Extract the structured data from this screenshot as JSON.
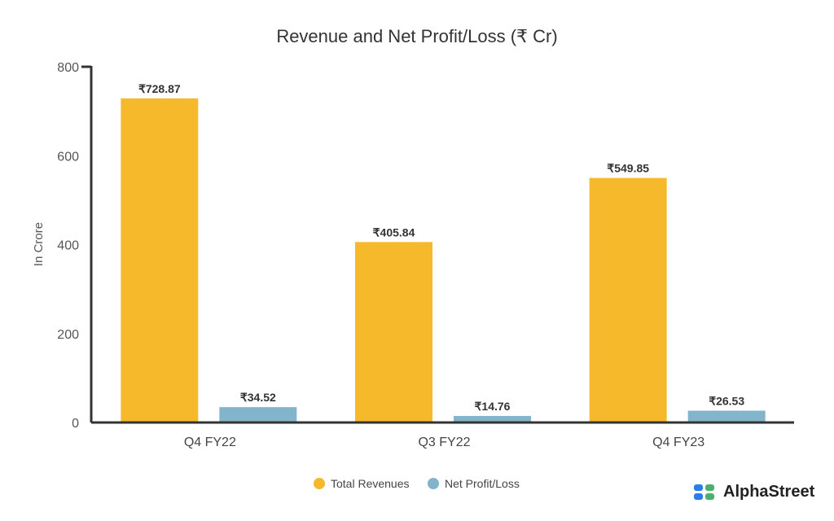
{
  "chart_data": {
    "type": "bar",
    "title": "Revenue and Net Profit/Loss (₹ Cr)",
    "xlabel": "",
    "ylabel": "In Crore",
    "ylim": [
      0,
      800
    ],
    "yticks": [
      "0",
      "200",
      "400",
      "600",
      "800"
    ],
    "categories": [
      "Q4 FY22",
      "Q3 FY22",
      "Q4 FY23"
    ],
    "series": [
      {
        "name": "Total Revenues",
        "color": "#F6B92B",
        "values": [
          728.87,
          405.84,
          549.85
        ],
        "labels": [
          "₹728.87",
          "₹405.84",
          "₹549.85"
        ]
      },
      {
        "name": "Net Profit/Loss",
        "color": "#82B4CB",
        "values": [
          34.52,
          14.76,
          26.53
        ],
        "labels": [
          "₹34.52",
          "₹14.76",
          "₹26.53"
        ]
      }
    ],
    "legend": "bottom-center"
  },
  "brand": {
    "name": "AlphaStreet"
  }
}
